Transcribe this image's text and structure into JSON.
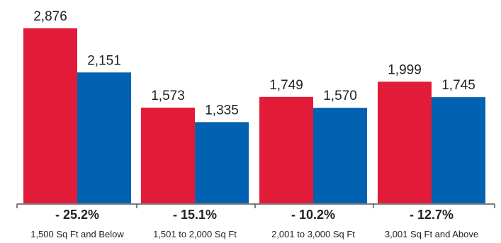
{
  "chart_data": {
    "type": "bar",
    "categories": [
      "1,500 Sq Ft and Below",
      "1,501 to 2,000 Sq Ft",
      "2,001 to 3,000 Sq Ft",
      "3,001 Sq Ft and Above"
    ],
    "series": [
      {
        "values": [
          2876,
          1573,
          1749,
          1999
        ],
        "value_labels": [
          "2,876",
          "1,573",
          "1,749",
          "1,999"
        ],
        "color": "#e21c38"
      },
      {
        "values": [
          2151,
          1335,
          1570,
          1745
        ],
        "value_labels": [
          "2,151",
          "1,335",
          "1,570",
          "1,745"
        ],
        "color": "#0062b0"
      }
    ],
    "changes": [
      "- 25.2%",
      "- 15.1%",
      "- 10.2%",
      "- 12.7%"
    ],
    "ylim": [
      0,
      2876
    ],
    "grid": false,
    "legend": "none",
    "axis_color": "#555555",
    "text_color": "#222222"
  }
}
